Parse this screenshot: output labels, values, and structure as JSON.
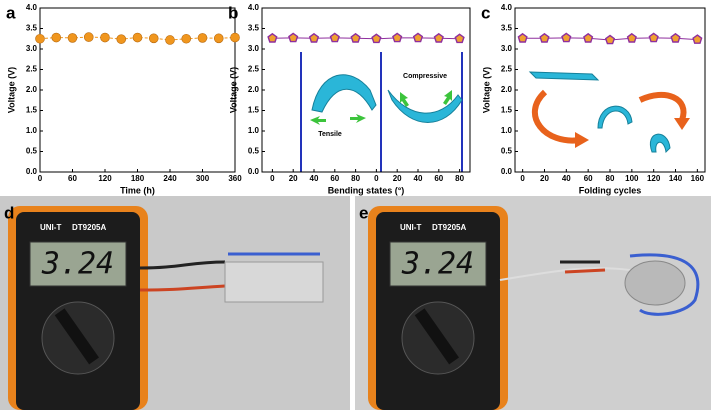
{
  "chart_data": [
    {
      "type": "line",
      "panel": "a",
      "xlabel": "Time (h)",
      "ylabel": "Voltage (V)",
      "x": [
        0,
        30,
        60,
        90,
        120,
        150,
        180,
        210,
        240,
        270,
        300,
        330,
        360
      ],
      "series": [
        {
          "color": "#f0961e",
          "marker": "circle",
          "dashed": true,
          "values": [
            3.25,
            3.28,
            3.27,
            3.29,
            3.28,
            3.24,
            3.28,
            3.26,
            3.22,
            3.25,
            3.27,
            3.26,
            3.28
          ]
        }
      ],
      "xlim": [
        0,
        360
      ],
      "xticks": [
        0,
        60,
        120,
        180,
        240,
        300,
        360
      ],
      "ylim": [
        0,
        4
      ],
      "yticks": [
        {
          "value": 0,
          "label": "0.0"
        },
        {
          "value": 0.5,
          "label": "0.5"
        },
        {
          "value": 1,
          "label": "1.0"
        },
        {
          "value": 1.5,
          "label": "1.5"
        },
        {
          "value": 2,
          "label": "2.0"
        },
        {
          "value": 2.5,
          "label": "2.5"
        },
        {
          "value": 3,
          "label": "3.0"
        },
        {
          "value": 3.5,
          "label": "3.5"
        },
        {
          "value": 4,
          "label": "4.0"
        }
      ]
    },
    {
      "type": "line",
      "panel": "b",
      "xlabel": "Bending states (°)",
      "ylabel": "Voltage (V)",
      "categories": [
        "0",
        "20",
        "40",
        "60",
        "80",
        "0",
        "20",
        "40",
        "60",
        "80"
      ],
      "series": [
        {
          "color": "#8e2f9e",
          "marker": "pentagon",
          "dashed": false,
          "values": [
            3.26,
            3.27,
            3.26,
            3.27,
            3.26,
            3.25,
            3.27,
            3.27,
            3.26,
            3.25
          ]
        }
      ],
      "annotations": [
        "Tensile",
        "Compressive"
      ],
      "ylim": [
        0,
        4
      ],
      "yticks": [
        {
          "value": 0,
          "label": "0.0"
        },
        {
          "value": 0.5,
          "label": "0.5"
        },
        {
          "value": 1,
          "label": "1.0"
        },
        {
          "value": 1.5,
          "label": "1.5"
        },
        {
          "value": 2,
          "label": "2.0"
        },
        {
          "value": 2.5,
          "label": "2.5"
        },
        {
          "value": 3,
          "label": "3.0"
        },
        {
          "value": 3.5,
          "label": "3.5"
        },
        {
          "value": 4,
          "label": "4.0"
        }
      ]
    },
    {
      "type": "line",
      "panel": "c",
      "xlabel": "Folding cycles",
      "ylabel": "Voltage (V)",
      "x": [
        0,
        20,
        40,
        60,
        80,
        100,
        120,
        140,
        160
      ],
      "series": [
        {
          "color": "#8e2f9e",
          "marker": "pentagon",
          "dashed": false,
          "values": [
            3.26,
            3.26,
            3.27,
            3.26,
            3.22,
            3.26,
            3.27,
            3.26,
            3.23
          ]
        }
      ],
      "xlim": [
        -7,
        167
      ],
      "xticks": [
        0,
        20,
        40,
        60,
        80,
        100,
        120,
        140,
        160
      ],
      "ylim": [
        0,
        4
      ],
      "yticks": [
        {
          "value": 0,
          "label": "0.0"
        },
        {
          "value": 0.5,
          "label": "0.5"
        },
        {
          "value": 1,
          "label": "1.0"
        },
        {
          "value": 1.5,
          "label": "1.5"
        },
        {
          "value": 2,
          "label": "2.0"
        },
        {
          "value": 2.5,
          "label": "2.5"
        },
        {
          "value": 3,
          "label": "3.0"
        },
        {
          "value": 3.5,
          "label": "3.5"
        },
        {
          "value": 4,
          "label": "4.0"
        }
      ]
    }
  ],
  "photos": [
    {
      "label": "d",
      "display": "3.24",
      "brand": "UNI-T",
      "model": "DT9205A"
    },
    {
      "label": "e",
      "display": "3.24",
      "brand": "UNI-T",
      "model": "DT9205A"
    }
  ]
}
